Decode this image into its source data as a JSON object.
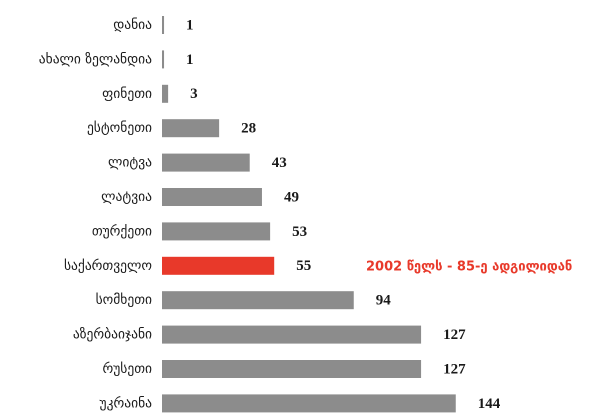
{
  "chart_data": {
    "type": "bar",
    "orientation": "horizontal",
    "categories": [
      "დანია",
      "ახალი ზელანდია",
      "ფინეთი",
      "ესტონეთი",
      "ლიტვა",
      "ლატვია",
      "თურქეთი",
      "საქართველო",
      "სომხეთი",
      "აზერბაიჯანი",
      "რუსეთი",
      "უკრაინა"
    ],
    "values": [
      1,
      1,
      3,
      28,
      43,
      49,
      53,
      55,
      94,
      127,
      127,
      144
    ],
    "colors": [
      "#8c8c8c",
      "#8c8c8c",
      "#8c8c8c",
      "#8c8c8c",
      "#8c8c8c",
      "#8c8c8c",
      "#8c8c8c",
      "#e8392a",
      "#8c8c8c",
      "#8c8c8c",
      "#8c8c8c",
      "#8c8c8c"
    ],
    "annotation": {
      "text": "2002 წელს - 85-ე ადგილიდან",
      "category_index": 7,
      "color": "#e8392a"
    }
  }
}
